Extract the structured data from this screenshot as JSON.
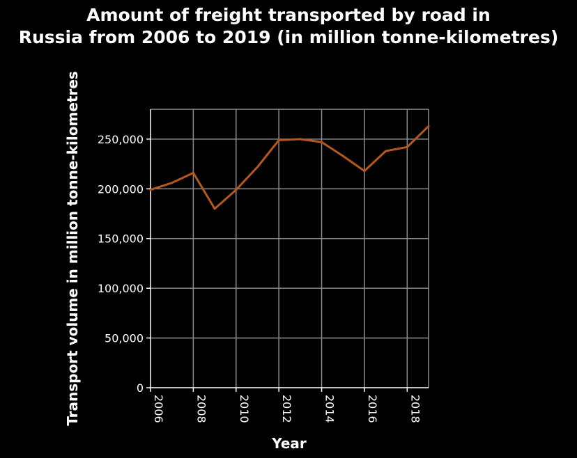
{
  "chart_data": {
    "type": "line",
    "title": [
      "Amount of freight transported by road in",
      "Russia from 2006 to 2019 (in million tonne-kilometres)"
    ],
    "xlabel": "Year",
    "ylabel": "Transport volume in million tonne-kilometres",
    "xlim": [
      2006,
      2019
    ],
    "ylim": [
      0,
      280000
    ],
    "x_ticks": [
      2006,
      2008,
      2010,
      2012,
      2014,
      2016,
      2018
    ],
    "x_tick_labels": [
      "2006",
      "2008",
      "2010",
      "2012",
      "2014",
      "2016",
      "2018"
    ],
    "y_ticks": [
      0,
      50000,
      100000,
      150000,
      200000,
      250000
    ],
    "y_tick_labels": [
      "0",
      "50,000",
      "100,000",
      "150,000",
      "200,000",
      "250,000"
    ],
    "grid": true,
    "series": [
      {
        "color": "#b5581f",
        "x": [
          2006,
          2007,
          2008,
          2009,
          2010,
          2011,
          2012,
          2013,
          2014,
          2015,
          2016,
          2017,
          2018,
          2019
        ],
        "values": [
          199000,
          206000,
          216000,
          180000,
          199000,
          222000,
          249000,
          250000,
          247000,
          233000,
          218000,
          238000,
          242000,
          263000
        ]
      }
    ]
  }
}
